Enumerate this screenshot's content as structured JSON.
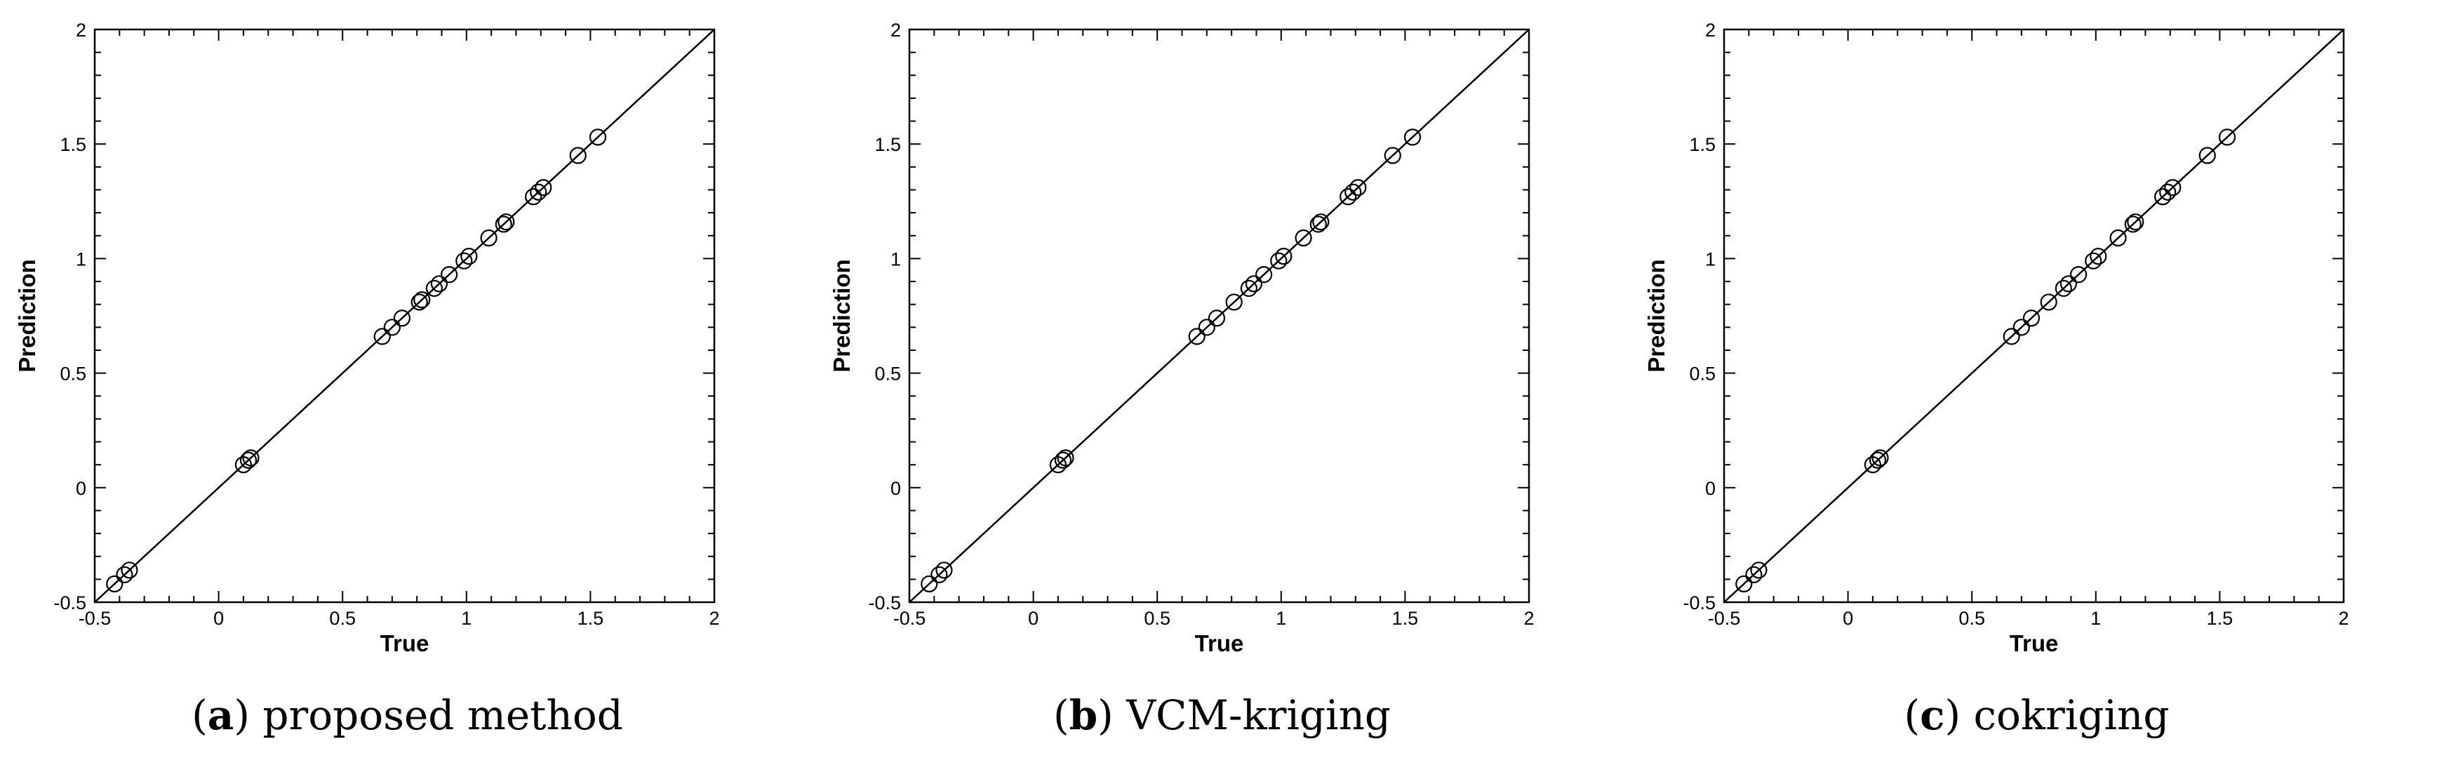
{
  "chart_data": [
    {
      "type": "scatter",
      "caption_letter": "a",
      "caption_text": "proposed method",
      "xlabel": "True",
      "ylabel": "Prediction",
      "xlim": [
        -0.5,
        2
      ],
      "ylim": [
        -0.5,
        2
      ],
      "xticks": [
        "-0.5",
        "0",
        "0.5",
        "1",
        "1.5",
        "2"
      ],
      "yticks": [
        "-0.5",
        "0",
        "0.5",
        "1",
        "1.5",
        "2"
      ],
      "reference_line": "y = x",
      "x": [
        -0.42,
        -0.38,
        -0.36,
        0.1,
        0.12,
        0.13,
        0.66,
        0.7,
        0.74,
        0.81,
        0.82,
        0.87,
        0.89,
        0.93,
        0.99,
        1.01,
        1.09,
        1.15,
        1.16,
        1.27,
        1.29,
        1.31,
        1.45,
        1.53
      ],
      "y": [
        -0.42,
        -0.38,
        -0.36,
        0.1,
        0.12,
        0.13,
        0.66,
        0.7,
        0.74,
        0.81,
        0.82,
        0.87,
        0.89,
        0.93,
        0.99,
        1.01,
        1.09,
        1.15,
        1.16,
        1.27,
        1.29,
        1.31,
        1.45,
        1.53
      ]
    },
    {
      "type": "scatter",
      "caption_letter": "b",
      "caption_text": "VCM-kriging",
      "xlabel": "True",
      "ylabel": "Prediction",
      "xlim": [
        -0.5,
        2
      ],
      "ylim": [
        -0.5,
        2
      ],
      "xticks": [
        "-0.5",
        "0",
        "0.5",
        "1",
        "1.5",
        "2"
      ],
      "yticks": [
        "-0.5",
        "0",
        "0.5",
        "1",
        "1.5",
        "2"
      ],
      "reference_line": "y = x",
      "x": [
        -0.42,
        -0.38,
        -0.36,
        0.1,
        0.12,
        0.13,
        0.66,
        0.7,
        0.74,
        0.81,
        0.87,
        0.89,
        0.93,
        0.99,
        1.01,
        1.09,
        1.15,
        1.16,
        1.27,
        1.29,
        1.31,
        1.45,
        1.53
      ],
      "y": [
        -0.42,
        -0.38,
        -0.36,
        0.1,
        0.12,
        0.13,
        0.66,
        0.7,
        0.74,
        0.81,
        0.87,
        0.89,
        0.93,
        0.99,
        1.01,
        1.09,
        1.15,
        1.16,
        1.27,
        1.29,
        1.31,
        1.45,
        1.53
      ]
    },
    {
      "type": "scatter",
      "caption_letter": "c",
      "caption_text": "cokriging",
      "xlabel": "True",
      "ylabel": "Prediction",
      "xlim": [
        -0.5,
        2
      ],
      "ylim": [
        -0.5,
        2
      ],
      "xticks": [
        "-0.5",
        "0",
        "0.5",
        "1",
        "1.5",
        "2"
      ],
      "yticks": [
        "-0.5",
        "0",
        "0.5",
        "1",
        "1.5",
        "2"
      ],
      "reference_line": "y = x",
      "x": [
        -0.42,
        -0.38,
        -0.36,
        0.1,
        0.12,
        0.13,
        0.66,
        0.7,
        0.74,
        0.81,
        0.87,
        0.89,
        0.93,
        0.99,
        1.01,
        1.09,
        1.15,
        1.16,
        1.27,
        1.29,
        1.31,
        1.45,
        1.53
      ],
      "y": [
        -0.42,
        -0.38,
        -0.36,
        0.1,
        0.12,
        0.13,
        0.66,
        0.7,
        0.74,
        0.81,
        0.87,
        0.89,
        0.93,
        0.99,
        1.01,
        1.09,
        1.15,
        1.16,
        1.27,
        1.29,
        1.31,
        1.45,
        1.53
      ]
    }
  ]
}
